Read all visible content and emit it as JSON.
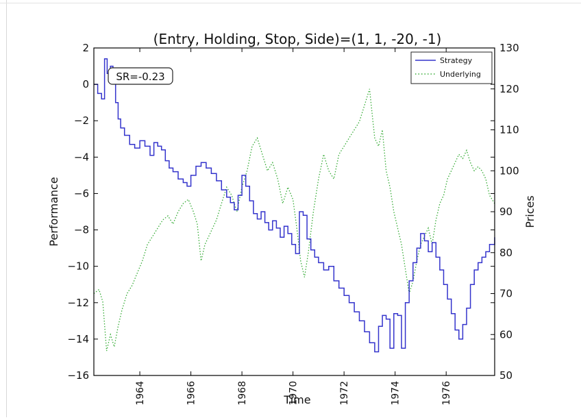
{
  "chart_data": {
    "type": "line",
    "title": "(Entry, Holding, Stop, Side)=(1, 1, -20, -1)",
    "xlabel": "Time",
    "ylabel_left": "Performance",
    "ylabel_right": "Prices",
    "x_range": [
      1962.2,
      1977.9
    ],
    "x_ticks": [
      "1964",
      "1966",
      "1968",
      "1970",
      "1972",
      "1974",
      "1976"
    ],
    "ylim_left": [
      -16,
      2
    ],
    "yticks_left": [
      "2",
      "0",
      "−2",
      "−4",
      "−6",
      "−8",
      "−10",
      "−12",
      "−14",
      "−16"
    ],
    "ylim_right": [
      50,
      130
    ],
    "yticks_right": [
      "130",
      "120",
      "110",
      "100",
      "90",
      "80",
      "70",
      "60",
      "50"
    ],
    "annotation": "SR=-0.23",
    "legend_position": "top-right",
    "grid": false,
    "series": [
      {
        "name": "Strategy",
        "axis": "left",
        "style": "solid step",
        "color": "#3333cc",
        "x": [
          1962.2,
          1962.35,
          1962.5,
          1962.62,
          1962.72,
          1962.85,
          1962.95,
          1963.05,
          1963.15,
          1963.25,
          1963.4,
          1963.6,
          1963.8,
          1964.0,
          1964.2,
          1964.4,
          1964.55,
          1964.7,
          1964.85,
          1965.0,
          1965.15,
          1965.3,
          1965.5,
          1965.7,
          1965.85,
          1966.0,
          1966.2,
          1966.4,
          1966.6,
          1966.8,
          1967.0,
          1967.2,
          1967.4,
          1967.55,
          1967.7,
          1967.85,
          1968.0,
          1968.15,
          1968.3,
          1968.45,
          1968.6,
          1968.75,
          1968.9,
          1969.05,
          1969.2,
          1969.35,
          1969.5,
          1969.65,
          1969.8,
          1969.95,
          1970.1,
          1970.25,
          1970.4,
          1970.55,
          1970.7,
          1970.85,
          1971.0,
          1971.2,
          1971.4,
          1971.6,
          1971.8,
          1972.0,
          1972.2,
          1972.4,
          1972.6,
          1972.8,
          1973.0,
          1973.2,
          1973.35,
          1973.5,
          1973.65,
          1973.8,
          1973.95,
          1974.1,
          1974.25,
          1974.4,
          1974.55,
          1974.7,
          1974.85,
          1975.0,
          1975.15,
          1975.3,
          1975.45,
          1975.6,
          1975.75,
          1975.9,
          1976.05,
          1976.2,
          1976.35,
          1976.5,
          1976.65,
          1976.8,
          1976.95,
          1977.1,
          1977.25,
          1977.4,
          1977.55,
          1977.7,
          1977.9
        ],
        "values": [
          0.0,
          -0.5,
          -0.8,
          1.4,
          0.6,
          1.0,
          0.2,
          -1.0,
          -1.9,
          -2.4,
          -2.8,
          -3.3,
          -3.5,
          -3.1,
          -3.4,
          -3.9,
          -3.2,
          -3.4,
          -3.6,
          -4.2,
          -4.6,
          -4.8,
          -5.2,
          -5.4,
          -5.6,
          -5.0,
          -4.5,
          -4.3,
          -4.6,
          -4.9,
          -5.3,
          -5.8,
          -6.2,
          -6.5,
          -6.9,
          -6.1,
          -5.0,
          -5.6,
          -6.4,
          -7.1,
          -7.4,
          -7.0,
          -7.6,
          -8.0,
          -7.5,
          -7.9,
          -8.4,
          -7.8,
          -8.2,
          -8.8,
          -9.3,
          -7.0,
          -7.2,
          -8.5,
          -9.1,
          -9.5,
          -9.8,
          -10.2,
          -10.0,
          -10.8,
          -11.2,
          -11.6,
          -12.0,
          -12.5,
          -13.0,
          -13.6,
          -14.2,
          -14.7,
          -13.3,
          -12.7,
          -12.9,
          -14.5,
          -12.6,
          -12.7,
          -14.5,
          -12.0,
          -10.8,
          -9.8,
          -9.0,
          -8.2,
          -8.6,
          -9.2,
          -8.7,
          -9.5,
          -10.2,
          -11.0,
          -11.8,
          -12.6,
          -13.5,
          -14.0,
          -13.2,
          -12.3,
          -11.0,
          -10.2,
          -9.8,
          -9.5,
          -9.2,
          -8.8,
          -8.4
        ]
      },
      {
        "name": "Underlying",
        "axis": "right",
        "style": "dotted",
        "color": "#33aa33",
        "x": [
          1962.2,
          1962.4,
          1962.55,
          1962.7,
          1962.85,
          1963.0,
          1963.15,
          1963.3,
          1963.5,
          1963.7,
          1963.9,
          1964.1,
          1964.3,
          1964.5,
          1964.7,
          1964.9,
          1965.1,
          1965.3,
          1965.5,
          1965.7,
          1965.9,
          1966.1,
          1966.25,
          1966.4,
          1966.55,
          1966.7,
          1966.85,
          1967.0,
          1967.2,
          1967.4,
          1967.6,
          1967.8,
          1968.0,
          1968.2,
          1968.4,
          1968.6,
          1968.8,
          1969.0,
          1969.2,
          1969.4,
          1969.6,
          1969.8,
          1970.0,
          1970.15,
          1970.3,
          1970.45,
          1970.6,
          1970.8,
          1971.0,
          1971.2,
          1971.4,
          1971.6,
          1971.8,
          1972.0,
          1972.2,
          1972.4,
          1972.6,
          1972.8,
          1973.0,
          1973.1,
          1973.2,
          1973.35,
          1973.5,
          1973.65,
          1973.8,
          1973.95,
          1974.1,
          1974.25,
          1974.4,
          1974.55,
          1974.7,
          1974.85,
          1975.0,
          1975.15,
          1975.3,
          1975.45,
          1975.6,
          1975.75,
          1975.9,
          1976.05,
          1976.2,
          1976.35,
          1976.5,
          1976.65,
          1976.8,
          1976.95,
          1977.1,
          1977.25,
          1977.4,
          1977.55,
          1977.7,
          1977.9
        ],
        "values": [
          70,
          71,
          68,
          56,
          60,
          57,
          62,
          66,
          70,
          72,
          75,
          78,
          82,
          84,
          86,
          88,
          89,
          87,
          90,
          92,
          93,
          90,
          87,
          78,
          82,
          84,
          86,
          88,
          92,
          96,
          94,
          90,
          96,
          100,
          106,
          108,
          104,
          100,
          102,
          98,
          92,
          96,
          93,
          86,
          78,
          74,
          80,
          90,
          98,
          104,
          100,
          98,
          104,
          106,
          108,
          110,
          112,
          116,
          120,
          114,
          108,
          106,
          110,
          100,
          96,
          90,
          86,
          82,
          76,
          70,
          73,
          78,
          82,
          84,
          86,
          82,
          88,
          92,
          94,
          98,
          100,
          102,
          104,
          103,
          105,
          102,
          100,
          101,
          100,
          98,
          94,
          92
        ]
      }
    ]
  }
}
